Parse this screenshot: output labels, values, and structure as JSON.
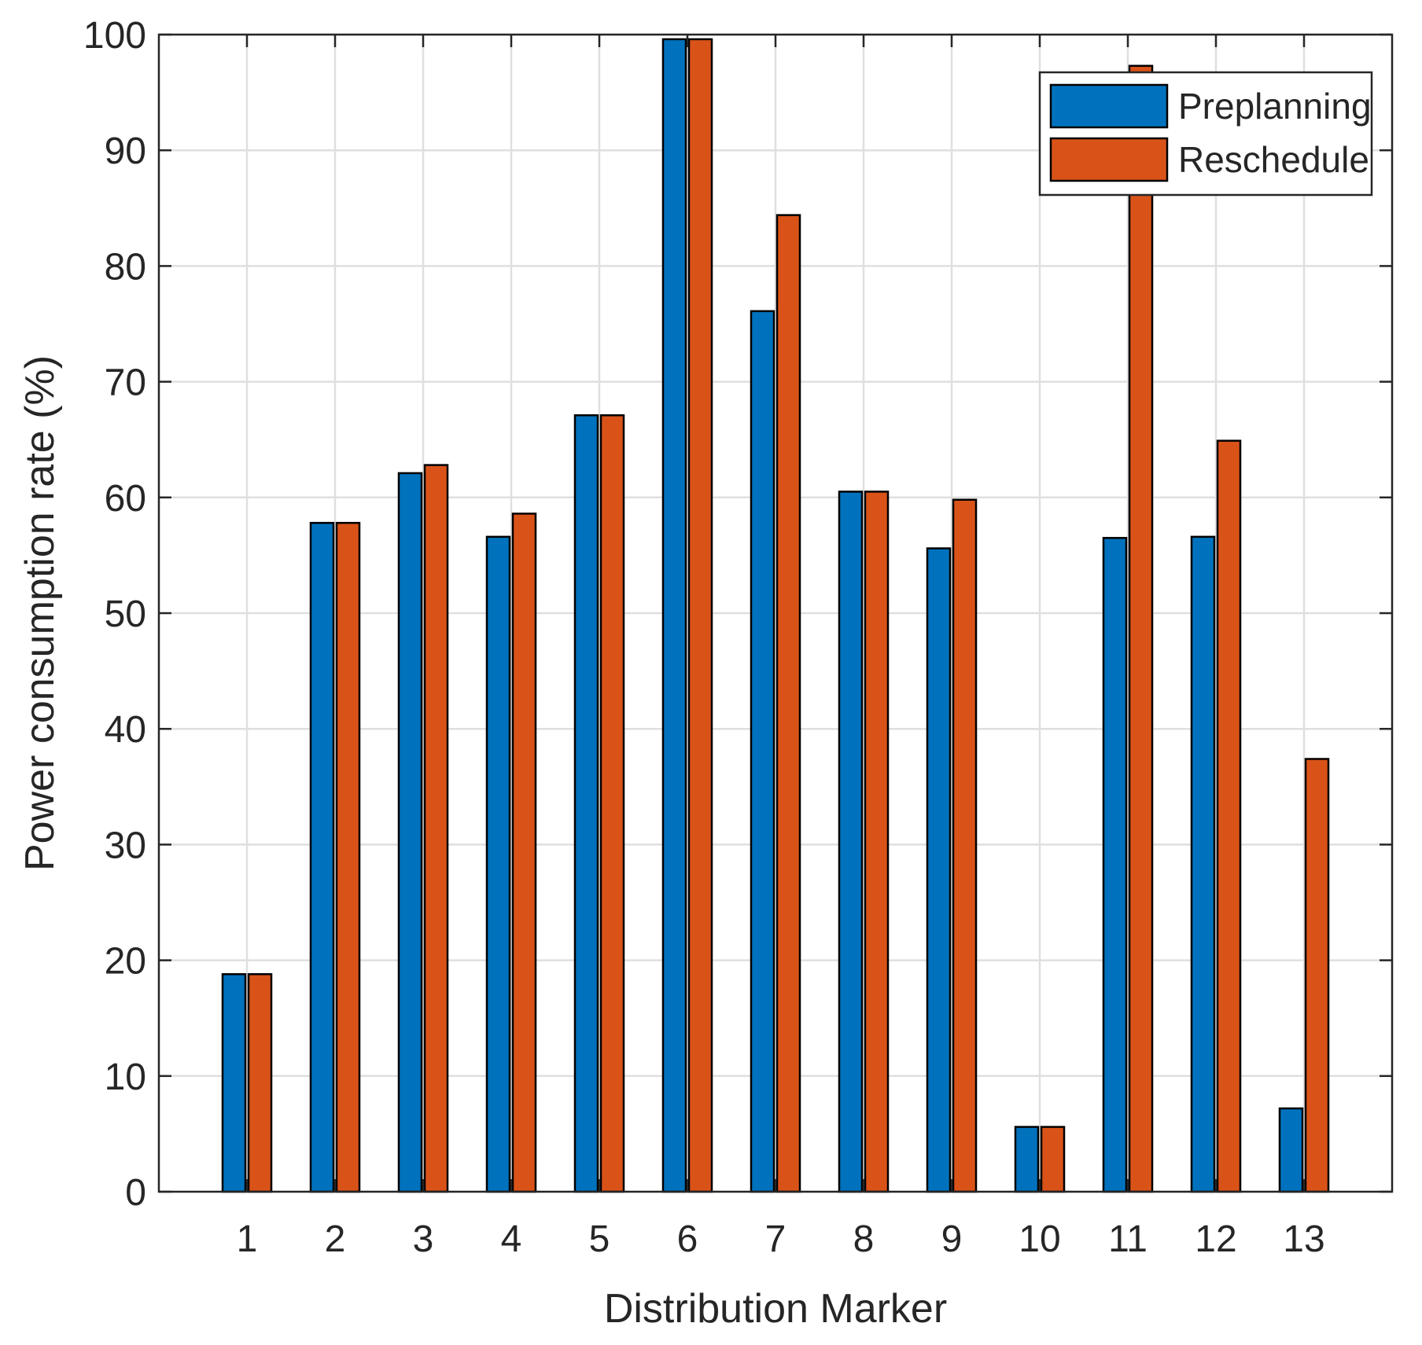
{
  "chart_data": {
    "type": "bar",
    "title": "",
    "xlabel": "Distribution Marker",
    "ylabel": "Power consumption rate (%)",
    "categories": [
      "1",
      "2",
      "3",
      "4",
      "5",
      "6",
      "7",
      "8",
      "9",
      "10",
      "11",
      "12",
      "13"
    ],
    "ylim": [
      0,
      100
    ],
    "yticks": [
      "0",
      "10",
      "20",
      "30",
      "40",
      "50",
      "60",
      "70",
      "80",
      "90",
      "100"
    ],
    "grid": true,
    "legend_position": "top-right",
    "series": [
      {
        "name": "Preplanning",
        "color": "#0072BD",
        "values": [
          18.8,
          57.8,
          62.1,
          56.6,
          67.1,
          99.6,
          76.1,
          60.5,
          55.6,
          5.6,
          56.5,
          56.6,
          7.2
        ]
      },
      {
        "name": "Reschedule",
        "color": "#D95319",
        "values": [
          18.8,
          57.8,
          62.8,
          58.6,
          67.1,
          99.6,
          84.4,
          60.5,
          59.8,
          5.6,
          97.3,
          64.9,
          37.4
        ]
      }
    ]
  }
}
